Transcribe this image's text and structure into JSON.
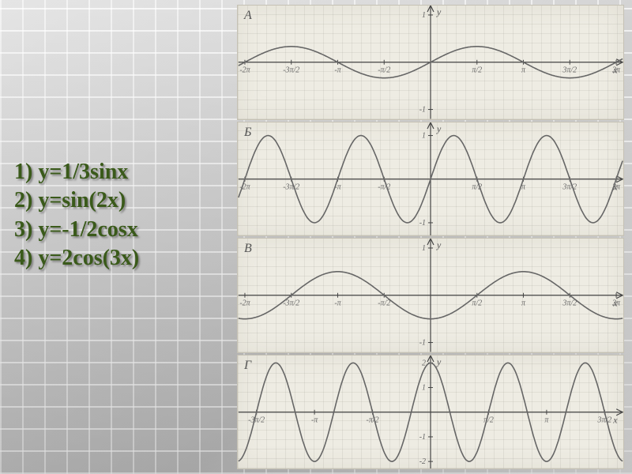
{
  "equations": [
    "1) y=1/3sinx",
    "2) y=sin(2x)",
    "3) y=-1/2cosx",
    "4) y=2cos(3x)"
  ],
  "equation_style": {
    "color": "#3a5a1a",
    "shadow_color": "rgba(80,80,80,0.6)",
    "font_size_pt": 21,
    "font_weight": "bold"
  },
  "panel_style": {
    "background_color": "#eeece3",
    "grid_color": "rgba(120,120,110,0.12)",
    "axis_color": "#444",
    "curve_color": "#666",
    "tick_color": "#555",
    "label_color": "#555"
  },
  "panels": [
    {
      "label": "А",
      "type": "line",
      "function": "1/3 * sin(x)",
      "amplitude": 0.333,
      "period": 6.2832,
      "phase": 0,
      "vertical_shift": 0,
      "x_range": [
        -6.5,
        6.5
      ],
      "y_range": [
        -1.2,
        1.2
      ],
      "x_ticks": [
        {
          "pos": -6.2832,
          "label": "-2π"
        },
        {
          "pos": -4.7124,
          "label": "-3π/2"
        },
        {
          "pos": -3.1416,
          "label": "-π"
        },
        {
          "pos": -1.5708,
          "label": "-π/2"
        },
        {
          "pos": 0,
          "label": "0"
        },
        {
          "pos": 1.5708,
          "label": "π/2"
        },
        {
          "pos": 3.1416,
          "label": "π"
        },
        {
          "pos": 4.7124,
          "label": "3π/2"
        },
        {
          "pos": 6.2832,
          "label": "2π"
        }
      ],
      "y_ticks": [
        {
          "pos": 1,
          "label": "1"
        },
        {
          "pos": -1,
          "label": "-1"
        }
      ],
      "line_width": 1.6
    },
    {
      "label": "Б",
      "type": "line",
      "function": "sin(2x)",
      "amplitude": 1.0,
      "period": 3.1416,
      "phase": 0,
      "vertical_shift": 0,
      "x_range": [
        -6.5,
        6.5
      ],
      "y_range": [
        -1.3,
        1.3
      ],
      "x_ticks": [
        {
          "pos": -6.2832,
          "label": "-2π"
        },
        {
          "pos": -4.7124,
          "label": "-3π/2"
        },
        {
          "pos": -3.1416,
          "label": "-π"
        },
        {
          "pos": -1.5708,
          "label": "-π/2"
        },
        {
          "pos": 0,
          "label": "0"
        },
        {
          "pos": 1.5708,
          "label": "π/2"
        },
        {
          "pos": 3.1416,
          "label": "π"
        },
        {
          "pos": 4.7124,
          "label": "3π/2"
        },
        {
          "pos": 6.2832,
          "label": "2π"
        }
      ],
      "y_ticks": [
        {
          "pos": 1,
          "label": "1"
        },
        {
          "pos": -1,
          "label": "-1"
        }
      ],
      "line_width": 1.6
    },
    {
      "label": "В",
      "type": "line",
      "function": "-1/2 * cos(x)",
      "amplitude": 0.5,
      "period": 6.2832,
      "phase": 0,
      "vertical_shift": 0,
      "is_cos_neg_half": true,
      "x_range": [
        -6.5,
        6.5
      ],
      "y_range": [
        -1.2,
        1.2
      ],
      "x_ticks": [
        {
          "pos": -6.2832,
          "label": "-2π"
        },
        {
          "pos": -4.7124,
          "label": "-3π/2"
        },
        {
          "pos": -3.1416,
          "label": "-π"
        },
        {
          "pos": -1.5708,
          "label": "-π/2"
        },
        {
          "pos": 0,
          "label": "0"
        },
        {
          "pos": 1.5708,
          "label": "π/2"
        },
        {
          "pos": 3.1416,
          "label": "π"
        },
        {
          "pos": 4.7124,
          "label": "3π/2"
        },
        {
          "pos": 6.2832,
          "label": "2π"
        }
      ],
      "y_ticks": [
        {
          "pos": 1,
          "label": "1"
        },
        {
          "pos": -1,
          "label": "-1"
        }
      ],
      "line_width": 1.6
    },
    {
      "label": "Г",
      "type": "line",
      "function": "2 * cos(3x)",
      "amplitude": 2.0,
      "period": 2.0944,
      "phase": 0,
      "vertical_shift": 0,
      "is_2cos3x": true,
      "x_range": [
        -5.2,
        5.2
      ],
      "y_range": [
        -2.3,
        2.3
      ],
      "x_ticks": [
        {
          "pos": -4.7124,
          "label": "-3π/2"
        },
        {
          "pos": -3.1416,
          "label": "-π"
        },
        {
          "pos": -1.5708,
          "label": "-π/2"
        },
        {
          "pos": 0,
          "label": "0"
        },
        {
          "pos": 1.5708,
          "label": "π/2"
        },
        {
          "pos": 3.1416,
          "label": "π"
        },
        {
          "pos": 4.7124,
          "label": "3π/2"
        }
      ],
      "y_ticks": [
        {
          "pos": 2,
          "label": "2"
        },
        {
          "pos": 1,
          "label": "1"
        },
        {
          "pos": -1,
          "label": "-1"
        },
        {
          "pos": -2,
          "label": "-2"
        }
      ],
      "line_width": 1.6
    }
  ],
  "axis_labels": {
    "x": "x",
    "y": "y"
  }
}
